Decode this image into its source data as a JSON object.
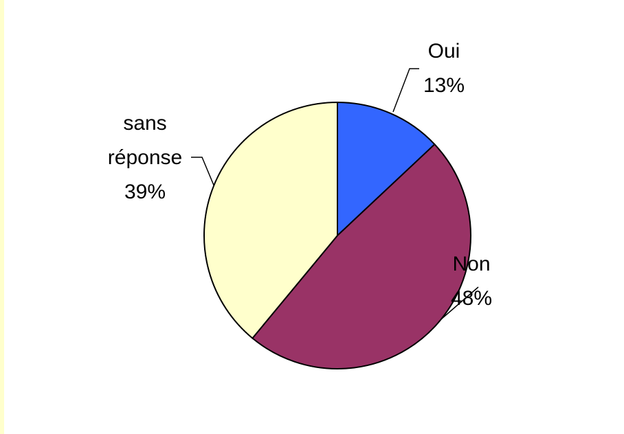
{
  "chart_data": {
    "type": "pie",
    "categories": [
      "Oui",
      "Non",
      "sans réponse"
    ],
    "values": [
      13,
      48,
      39
    ],
    "value_labels": [
      "13%",
      "48%",
      "39%"
    ],
    "colors": [
      "#3366ff",
      "#993366",
      "#ffffcc"
    ]
  }
}
